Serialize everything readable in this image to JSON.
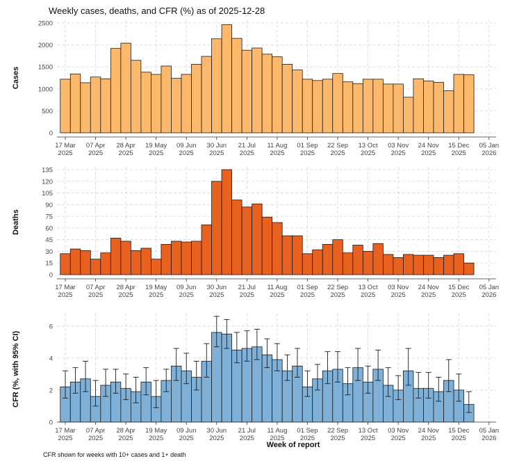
{
  "title": "Weekly cases, deaths, and CFR (%) as of 2025-12-28",
  "caption": "CFR shown for weeks with 10+ cases and 1+ death",
  "chart_data": [
    {
      "type": "bar",
      "name": "cases",
      "ylabel": "Cases",
      "ylim": [
        0,
        2500
      ],
      "yticks": [
        0,
        500,
        1000,
        1500,
        2000,
        2500
      ],
      "color": "#fdb96b",
      "values": [
        1220,
        1340,
        1140,
        1270,
        1230,
        1920,
        2040,
        1650,
        1380,
        1330,
        1520,
        1240,
        1330,
        1560,
        1740,
        2140,
        2460,
        2150,
        1880,
        1930,
        1790,
        1730,
        1560,
        1430,
        1220,
        1190,
        1220,
        1350,
        1160,
        1120,
        1220,
        1220,
        1110,
        1110,
        810,
        1230,
        1180,
        1150,
        960,
        1330,
        1320
      ]
    },
    {
      "type": "bar",
      "name": "deaths",
      "ylabel": "Deaths",
      "ylim": [
        0,
        135
      ],
      "yticks": [
        0,
        15,
        30,
        45,
        60,
        75,
        90,
        105,
        120,
        135
      ],
      "color": "#e9611f",
      "values": [
        27,
        33,
        31,
        20,
        28,
        47,
        43,
        31,
        34,
        20,
        39,
        43,
        42,
        43,
        64,
        120,
        135,
        96,
        87,
        91,
        74,
        67,
        50,
        50,
        27,
        32,
        39,
        45,
        28,
        38,
        30,
        40,
        26,
        22,
        26,
        25,
        25,
        22,
        25,
        27,
        15
      ]
    },
    {
      "type": "bar",
      "name": "cfr",
      "ylabel": "CFR (%, with 95% CI)",
      "xlabel": "Week of report",
      "ylim": [
        0,
        6.6
      ],
      "yticks": [
        0,
        2,
        4,
        6
      ],
      "color": "#7fb1d8",
      "values": [
        2.2,
        2.5,
        2.7,
        1.6,
        2.3,
        2.5,
        2.1,
        1.9,
        2.5,
        1.6,
        2.6,
        3.5,
        3.2,
        2.8,
        3.8,
        5.6,
        5.5,
        4.5,
        4.6,
        4.7,
        4.2,
        3.9,
        3.2,
        3.5,
        2.2,
        2.7,
        3.2,
        3.3,
        2.4,
        3.4,
        2.5,
        3.3,
        2.3,
        2.0,
        3.2,
        2.1,
        2.1,
        1.9,
        2.6,
        2.0,
        1.1
      ],
      "ci_low": [
        1.5,
        1.8,
        1.9,
        1.0,
        1.6,
        1.8,
        1.4,
        1.2,
        1.7,
        0.9,
        1.9,
        2.6,
        2.4,
        2.0,
        2.8,
        4.7,
        4.6,
        3.7,
        3.8,
        3.9,
        3.4,
        3.2,
        2.6,
        2.8,
        1.6,
        2.0,
        2.4,
        2.5,
        1.7,
        2.6,
        1.8,
        2.6,
        1.6,
        1.4,
        2.3,
        1.5,
        1.5,
        1.3,
        1.9,
        1.3,
        0.6
      ],
      "ci_high": [
        3.2,
        3.4,
        3.8,
        2.6,
        3.3,
        3.3,
        3.0,
        2.8,
        3.4,
        2.6,
        3.3,
        4.6,
        4.3,
        3.8,
        4.9,
        6.6,
        6.4,
        5.6,
        5.7,
        5.8,
        5.2,
        4.9,
        4.2,
        4.6,
        3.2,
        3.6,
        4.4,
        4.4,
        3.4,
        4.6,
        3.5,
        4.5,
        3.4,
        2.9,
        4.6,
        3.1,
        3.1,
        2.8,
        3.9,
        3.0,
        1.9
      ]
    }
  ],
  "x_ticks": [
    {
      "label": "17 Mar",
      "year": "2025",
      "week": 0
    },
    {
      "label": "07 Apr",
      "year": "2025",
      "week": 3
    },
    {
      "label": "28 Apr",
      "year": "2025",
      "week": 6
    },
    {
      "label": "19 May",
      "year": "2025",
      "week": 9
    },
    {
      "label": "09 Jun",
      "year": "2025",
      "week": 12
    },
    {
      "label": "30 Jun",
      "year": "2025",
      "week": 15
    },
    {
      "label": "21 Jul",
      "year": "2025",
      "week": 18
    },
    {
      "label": "11 Aug",
      "year": "2025",
      "week": 21
    },
    {
      "label": "01 Sep",
      "year": "2025",
      "week": 24
    },
    {
      "label": "22 Sep",
      "year": "2025",
      "week": 27
    },
    {
      "label": "13 Oct",
      "year": "2025",
      "week": 30
    },
    {
      "label": "03 Nov",
      "year": "2025",
      "week": 33
    },
    {
      "label": "24 Nov",
      "year": "2025",
      "week": 36
    },
    {
      "label": "15 Dec",
      "year": "2025",
      "week": 39
    },
    {
      "label": "05 Jan",
      "year": "2026",
      "week": 42
    }
  ]
}
